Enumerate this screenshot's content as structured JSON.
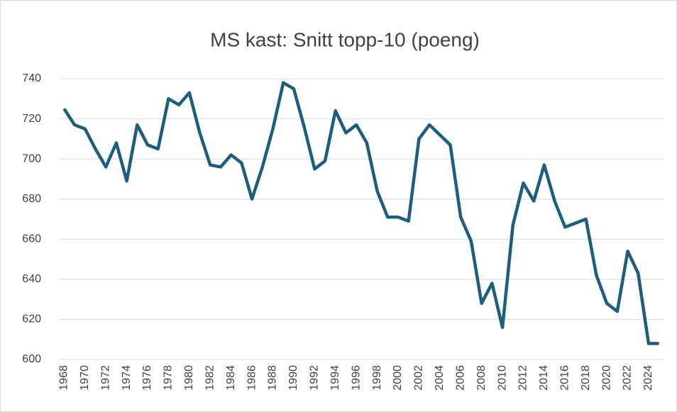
{
  "chart_data": {
    "type": "line",
    "title": "MS kast: Snitt topp-10 (poeng)",
    "x": [
      1968,
      1969,
      1970,
      1971,
      1972,
      1973,
      1974,
      1975,
      1976,
      1977,
      1978,
      1979,
      1980,
      1981,
      1982,
      1983,
      1984,
      1985,
      1986,
      1987,
      1988,
      1989,
      1990,
      1991,
      1992,
      1993,
      1994,
      1995,
      1996,
      1997,
      1998,
      1999,
      2000,
      2001,
      2002,
      2003,
      2004,
      2005,
      2006,
      2007,
      2008,
      2009,
      2010,
      2011,
      2012,
      2013,
      2014,
      2015,
      2016,
      2017,
      2018,
      2019,
      2020,
      2021,
      2022,
      2023,
      2024,
      2025
    ],
    "series": [
      {
        "name": "Snitt topp-10",
        "color": "#1d5e7e",
        "values": [
          725,
          717,
          715,
          705,
          696,
          708,
          689,
          717,
          707,
          705,
          730,
          727,
          733,
          713,
          697,
          696,
          702,
          698,
          680,
          696,
          715,
          738,
          735,
          716,
          695,
          699,
          724,
          713,
          717,
          708,
          684,
          671,
          671,
          669,
          710,
          717,
          712,
          707,
          671,
          659,
          628,
          638,
          616,
          667,
          688,
          679,
          697,
          679,
          666,
          668,
          670,
          642,
          628,
          624,
          654,
          643,
          608,
          608
        ]
      }
    ],
    "xlim": [
      1967.5,
      2025.5
    ],
    "xticks": [
      1968,
      1970,
      1972,
      1974,
      1976,
      1978,
      1980,
      1982,
      1984,
      1986,
      1988,
      1990,
      1992,
      1994,
      1996,
      1998,
      2000,
      2002,
      2004,
      2006,
      2008,
      2010,
      2012,
      2014,
      2016,
      2018,
      2020,
      2022,
      2024
    ],
    "ylim": [
      600,
      740
    ],
    "yticks": [
      600,
      620,
      640,
      660,
      680,
      700,
      720,
      740
    ],
    "grid": true
  }
}
